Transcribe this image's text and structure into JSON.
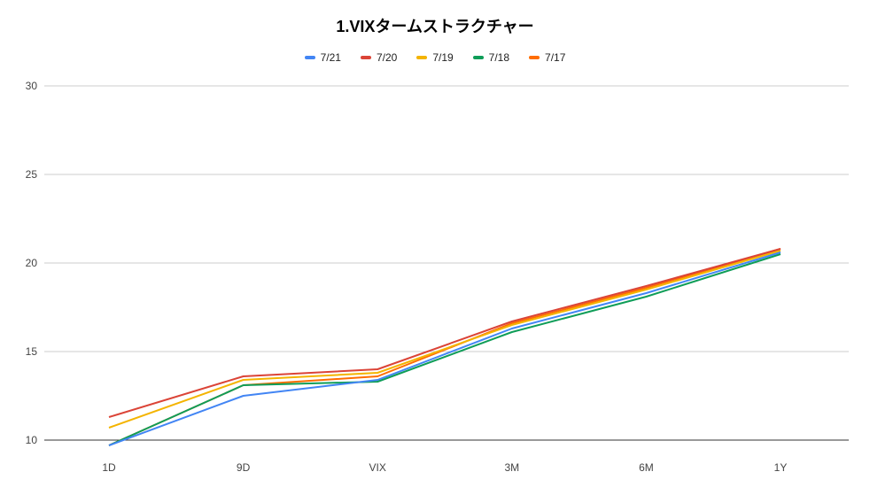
{
  "chart_data": {
    "type": "line",
    "title": "1.VIXタームストラクチャー",
    "categories": [
      "1D",
      "9D",
      "VIX",
      "3M",
      "6M",
      "1Y"
    ],
    "ylim": [
      10,
      30
    ],
    "yticks": [
      "10",
      "15",
      "20",
      "25",
      "30"
    ],
    "grid": true,
    "legend_position": "top",
    "series": [
      {
        "name": "7/21",
        "color": "#4285f4",
        "values": [
          9.7,
          12.5,
          13.4,
          16.3,
          18.3,
          20.6
        ]
      },
      {
        "name": "7/20",
        "color": "#db4437",
        "values": [
          11.3,
          13.6,
          14.0,
          16.7,
          18.7,
          20.8
        ]
      },
      {
        "name": "7/19",
        "color": "#f4b400",
        "values": [
          10.7,
          13.4,
          13.8,
          16.5,
          18.5,
          20.7
        ]
      },
      {
        "name": "7/18",
        "color": "#0f9d58",
        "values": [
          9.7,
          13.1,
          13.3,
          16.1,
          18.1,
          20.5
        ]
      },
      {
        "name": "7/17",
        "color": "#ff6d00",
        "values": [
          9.7,
          13.1,
          13.6,
          16.6,
          18.6,
          20.8
        ]
      }
    ]
  }
}
